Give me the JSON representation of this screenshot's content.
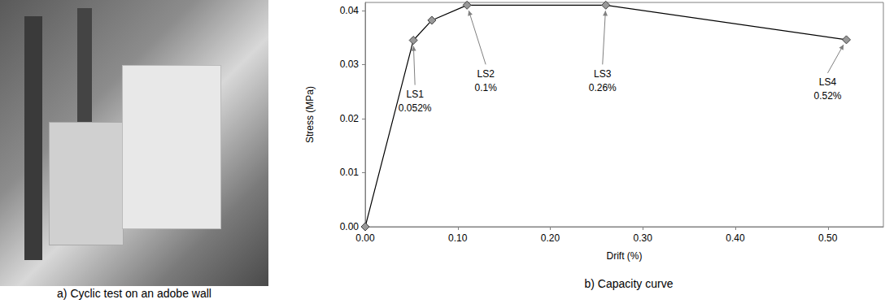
{
  "photo": {
    "caption": "a) Cyclic test on an adobe wall"
  },
  "chart_data": {
    "type": "line",
    "title": "b) Capacity curve",
    "x_label": "Drift (%)",
    "y_label": "Stress (MPa)",
    "x": [
      0.0,
      0.052,
      0.072,
      0.11,
      0.26,
      0.52
    ],
    "values": [
      0.0,
      0.0345,
      0.0382,
      0.041,
      0.041,
      0.0346
    ],
    "color": "#999999",
    "marker": "diamond",
    "line_style": "solid",
    "xlim": [
      0,
      0.56
    ],
    "xticks": [
      {
        "value": 0,
        "label": "0.00"
      },
      {
        "value": 0.1,
        "label": "0.10"
      },
      {
        "value": 0.2,
        "label": "0.20"
      },
      {
        "value": 0.3,
        "label": "0.30"
      },
      {
        "value": 0.4,
        "label": "0.40"
      },
      {
        "value": 0.5,
        "label": "0.50"
      }
    ],
    "ylim": [
      0,
      0.0415
    ],
    "yticks": [
      {
        "value": 0,
        "label": "0.00"
      },
      {
        "value": 0.01,
        "label": "0.01"
      },
      {
        "value": 0.02,
        "label": "0.02"
      },
      {
        "value": 0.03,
        "label": "0.03"
      },
      {
        "value": 0.04,
        "label": "0.04"
      }
    ],
    "grid": false,
    "annotations": [
      {
        "text": "LS1\n0.052%",
        "x": 0.052,
        "y": 0.0345
      },
      {
        "text": "LS2\n0.1%",
        "x": 0.11,
        "y": 0.041
      },
      {
        "text": "LS3\n0.26%",
        "x": 0.26,
        "y": 0.041
      },
      {
        "text": "LS4\n0.52%",
        "x": 0.52,
        "y": 0.0346
      }
    ]
  }
}
